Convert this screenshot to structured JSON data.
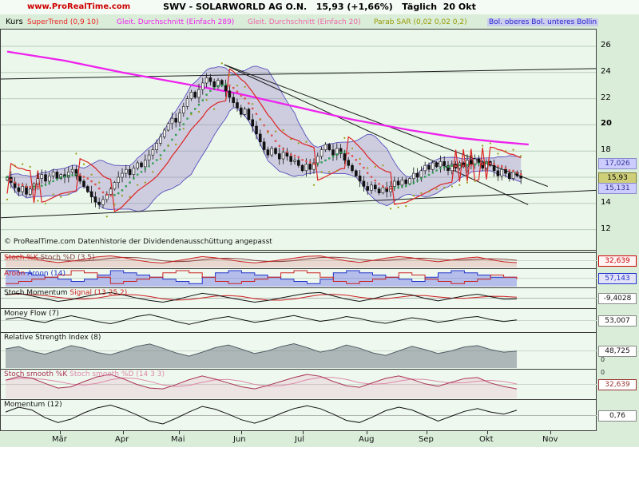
{
  "header": {
    "site": "www.ProRealTime.com",
    "title": "SWV - SOLARWORLD AG O.N.",
    "price": "15,93",
    "change": "(+1,66%)",
    "period": "Täglich",
    "date": "20 Okt"
  },
  "legend": {
    "panel_label": "Kurs",
    "items": [
      {
        "label": "SuperTrend (0,9 10)",
        "color": "#ee2222",
        "highlight": ""
      },
      {
        "label": "Gleit. Durchschnitt (Einfach 289)",
        "color": "#ee22ee",
        "highlight": ""
      },
      {
        "label": "Gleit. Durchschnitt (Einfach 20)",
        "color": "#ee66aa",
        "highlight": ""
      },
      {
        "label": "Parab SAR (0,02 0,02 0,2)",
        "color": "#999900",
        "highlight": ""
      },
      {
        "label": "Bol. oberes Bol. unteres Bollin",
        "color": "#2222cc",
        "highlight": "#ccccee"
      }
    ]
  },
  "price_panel": {
    "yticks": [
      {
        "v": "26",
        "p": 26,
        "bold": false
      },
      {
        "v": "24",
        "p": 24,
        "bold": false
      },
      {
        "v": "22",
        "p": 22,
        "bold": false
      },
      {
        "v": "20",
        "p": 20,
        "bold": true
      },
      {
        "v": "18",
        "p": 18,
        "bold": false
      },
      {
        "v": "16",
        "p": 16,
        "bold": false
      },
      {
        "v": "14",
        "p": 14,
        "bold": false
      },
      {
        "v": "12",
        "p": 12,
        "bold": false
      }
    ],
    "price_labels": [
      {
        "text": "17,026",
        "value": 17.026,
        "fg": "#333399",
        "bg": "#ccccff",
        "border": "#8888cc"
      },
      {
        "text": "15,93",
        "value": 15.93,
        "fg": "#000000",
        "bg": "#cfcf7a",
        "border": "#7a7a33"
      },
      {
        "text": "15,131",
        "value": 15.131,
        "fg": "#333399",
        "bg": "#ccccff",
        "border": "#8888cc"
      }
    ],
    "zero_labels": [
      {
        "text": "0"
      },
      {
        "text": "0"
      }
    ],
    "copyright": "© ProRealTime.com  Datenhistorie der Dividendenausschüttung angepasst"
  },
  "xaxis": {
    "months": [
      {
        "label": "Mär",
        "f": 0.1
      },
      {
        "label": "Apr",
        "f": 0.206
      },
      {
        "label": "Mai",
        "f": 0.3
      },
      {
        "label": "Jun",
        "f": 0.405
      },
      {
        "label": "Jul",
        "f": 0.508
      },
      {
        "label": "Aug",
        "f": 0.615
      },
      {
        "label": "Sep",
        "f": 0.716
      },
      {
        "label": "Okt",
        "f": 0.818
      },
      {
        "label": "Nov",
        "f": 0.923
      }
    ]
  },
  "chart_data": {
    "type": "candlestick",
    "title": "SWV - SOLARWORLD AG O.N.",
    "interval": "Täglich",
    "last_price": 15.93,
    "change_pct": 1.66,
    "ylim": [
      11.5,
      27.5
    ],
    "grid_prices": [
      12,
      14,
      16,
      18,
      20,
      22,
      24,
      26
    ],
    "close": [
      16.0,
      15.6,
      15.2,
      14.9,
      15.3,
      14.7,
      15.1,
      15.5,
      15.9,
      16.2,
      15.7,
      16.1,
      16.4,
      15.9,
      16.2,
      16.0,
      16.4,
      16.6,
      16.1,
      15.7,
      15.3,
      14.9,
      14.5,
      14.1,
      13.9,
      14.3,
      14.7,
      15.1,
      15.6,
      16.0,
      16.3,
      16.6,
      16.2,
      16.7,
      17.1,
      16.8,
      17.3,
      17.7,
      18.1,
      18.6,
      19.1,
      19.6,
      20.1,
      20.5,
      20.2,
      20.9,
      21.4,
      22.0,
      22.5,
      22.1,
      22.7,
      23.2,
      23.6,
      23.3,
      22.9,
      23.4,
      23.0,
      22.6,
      22.1,
      21.7,
      21.3,
      20.8,
      21.2,
      20.4,
      19.9,
      19.3,
      18.7,
      18.1,
      17.7,
      18.2,
      17.8,
      17.4,
      17.9,
      17.6,
      17.2,
      17.3,
      16.9,
      16.5,
      17.0,
      16.6,
      17.1,
      17.6,
      18.1,
      18.5,
      18.1,
      17.7,
      18.2,
      17.8,
      17.3,
      16.9,
      16.5,
      16.1,
      15.7,
      15.3,
      15.0,
      15.4,
      15.1,
      14.8,
      15.2,
      14.9,
      15.3,
      15.7,
      15.4,
      15.8,
      15.5,
      15.9,
      16.3,
      16.0,
      16.5,
      16.9,
      16.6,
      17.1,
      16.8,
      17.2,
      16.9,
      16.5,
      17.0,
      16.7,
      17.1,
      16.8,
      17.3,
      17.0,
      17.4,
      17.1,
      16.7,
      17.2,
      16.9,
      16.5,
      16.1,
      16.6,
      16.3,
      15.9,
      16.4,
      16.1,
      15.93
    ],
    "ma289_anchors": [
      [
        0,
        25.6
      ],
      [
        15,
        24.9
      ],
      [
        30,
        24.0
      ],
      [
        45,
        23.2
      ],
      [
        60,
        22.4
      ],
      [
        75,
        21.4
      ],
      [
        90,
        20.4
      ],
      [
        105,
        19.6
      ],
      [
        118,
        19.0
      ],
      [
        128,
        18.7
      ],
      [
        136,
        18.5
      ]
    ],
    "trend_lines": [
      [
        0.0,
        23.5,
        1.0,
        24.3
      ],
      [
        0.0,
        12.9,
        1.0,
        15.0
      ],
      [
        0.375,
        24.6,
        0.918,
        15.3
      ],
      [
        0.375,
        24.6,
        0.885,
        13.9
      ]
    ],
    "indicators": [
      {
        "id": "stoch",
        "label_parts": [
          {
            "t": "Stoch %K ",
            "c": "#cc2222"
          },
          {
            "t": "Stoch %D (3 5)",
            "c": "#8a4444"
          }
        ],
        "value": "32,639",
        "box": {
          "fg": "#cc0000",
          "bg": "#fff5f5",
          "border": "#cc0000"
        },
        "range": [
          0,
          100
        ],
        "color": "#cc2222",
        "second": "#8a4444",
        "fill": "rgba(220,120,120,0.25)",
        "values": [
          78,
          85,
          68,
          48,
          34,
          46,
          62,
          81,
          90,
          76,
          54,
          38,
          30,
          47,
          66,
          84,
          74,
          58,
          42,
          31,
          42,
          56,
          71,
          86,
          90,
          69,
          49,
          36,
          52,
          71,
          84,
          74,
          54,
          41,
          56,
          71,
          80,
          59,
          41,
          33
        ]
      },
      {
        "id": "aroon",
        "label_parts": [
          {
            "t": "Aroon ",
            "c": "#cc2222"
          },
          {
            "t": "Aroon (14)",
            "c": "#2233cc"
          }
        ],
        "value": "57,143",
        "box": {
          "fg": "#2233cc",
          "bg": "#e2e2f8",
          "border": "#2233cc"
        },
        "range": [
          0,
          100
        ],
        "step": true,
        "up_color": "#2233cc",
        "down_color": "#cc2222",
        "up_fill": "rgba(110,120,230,0.45)",
        "up": [
          100,
          86,
          71,
          57,
          43,
          29,
          43,
          71,
          100,
          86,
          71,
          57,
          43,
          29,
          14,
          57,
          86,
          100,
          86,
          71,
          57,
          43,
          29,
          14,
          43,
          86,
          100,
          86,
          71,
          57,
          43,
          29,
          57,
          86,
          100,
          86,
          71,
          57,
          57,
          57
        ],
        "down": [
          14,
          29,
          43,
          57,
          71,
          100,
          86,
          57,
          14,
          29,
          43,
          57,
          86,
          100,
          86,
          57,
          29,
          14,
          29,
          43,
          57,
          86,
          100,
          86,
          57,
          29,
          14,
          29,
          43,
          57,
          86,
          71,
          43,
          29,
          14,
          29,
          43,
          71,
          57,
          43
        ]
      },
      {
        "id": "stoch-momentum",
        "label_parts": [
          {
            "t": "Stoch Momentum ",
            "c": "#111111"
          },
          {
            "t": "Signal (13 25 2)",
            "c": "#cc2222"
          }
        ],
        "value": "-9,4028",
        "box": {
          "fg": "#111111",
          "bg": "#ffffff",
          "border": "#888888"
        },
        "range": [
          -100,
          100
        ],
        "zero": true,
        "color": "#111111",
        "second": "#cc2222",
        "values": [
          42,
          58,
          28,
          -8,
          -38,
          -18,
          18,
          48,
          68,
          38,
          2,
          -28,
          -48,
          -18,
          22,
          58,
          38,
          8,
          -22,
          -48,
          -28,
          2,
          32,
          58,
          68,
          28,
          -12,
          -38,
          -8,
          32,
          58,
          38,
          -2,
          -32,
          -2,
          28,
          48,
          18,
          -12,
          -9
        ]
      },
      {
        "id": "money-flow",
        "label_parts": [
          {
            "t": "Money Flow (7)",
            "c": "#111111"
          }
        ],
        "value": "53,007",
        "box": {
          "fg": "#111111",
          "bg": "#ffffff",
          "border": "#888888"
        },
        "range": [
          0,
          100
        ],
        "color": "#111111",
        "values": [
          56,
          66,
          50,
          40,
          60,
          74,
          60,
          45,
          34,
          50,
          70,
          80,
          64,
          45,
          31,
          46,
          60,
          70,
          55,
          41,
          50,
          64,
          75,
          60,
          46,
          55,
          70,
          60,
          45,
          36,
          50,
          64,
          55,
          41,
          50,
          64,
          70,
          55,
          45,
          53
        ]
      },
      {
        "id": "rsi",
        "label_parts": [
          {
            "t": "Relative Strength Index (8)",
            "c": "#111111"
          }
        ],
        "value": "48,725",
        "box": {
          "fg": "#111111",
          "bg": "#ffffff",
          "border": "#888888"
        },
        "range": [
          0,
          100
        ],
        "color": "#55606a",
        "fill": "rgba(120,130,140,0.55)",
        "values": [
          56,
          63,
          48,
          40,
          52,
          66,
          58,
          45,
          38,
          50,
          64,
          71,
          58,
          44,
          34,
          46,
          60,
          68,
          55,
          42,
          50,
          63,
          72,
          60,
          46,
          54,
          68,
          58,
          44,
          36,
          50,
          64,
          54,
          42,
          50,
          62,
          66,
          54,
          46,
          49
        ]
      },
      {
        "id": "stoch-smooth",
        "label_parts": [
          {
            "t": "Stoch smooth %K ",
            "c": "#aa3355"
          },
          {
            "t": "Stoch smooth %D (14 3 3)",
            "c": "#dd88aa"
          }
        ],
        "value": "32,639",
        "box": {
          "fg": "#993333",
          "bg": "#ffffff",
          "border": "#993333"
        },
        "range": [
          0,
          100
        ],
        "color": "#aa3355",
        "second": "#dd88aa",
        "fill": "rgba(221,136,170,0.18)",
        "values": [
          66,
          80,
          74,
          54,
          36,
          41,
          61,
          79,
          88,
          71,
          50,
          36,
          33,
          49,
          68,
          82,
          70,
          55,
          41,
          33,
          46,
          61,
          76,
          88,
          81,
          61,
          45,
          39,
          56,
          73,
          82,
          69,
          52,
          43,
          58,
          72,
          76,
          55,
          42,
          33
        ]
      },
      {
        "id": "momentum",
        "label_parts": [
          {
            "t": "Momentum (12)",
            "c": "#111111"
          }
        ],
        "value": "0,76",
        "box": {
          "fg": "#111111",
          "bg": "#ffffff",
          "border": "#888888"
        },
        "range": [
          -2,
          2
        ],
        "zero": true,
        "color": "#111111",
        "values": [
          0.5,
          1.2,
          0.8,
          -0.3,
          -1.0,
          -0.5,
          0.4,
          1.1,
          1.5,
          0.9,
          0.1,
          -0.8,
          -1.2,
          -0.4,
          0.5,
          1.3,
          0.9,
          0.2,
          -0.6,
          -1.1,
          -0.5,
          0.3,
          1.0,
          1.4,
          1.0,
          0.2,
          -0.7,
          -1.0,
          -0.2,
          0.7,
          1.2,
          0.8,
          0.0,
          -0.8,
          -0.1,
          0.6,
          1.0,
          0.5,
          0.2,
          0.76
        ]
      }
    ]
  }
}
